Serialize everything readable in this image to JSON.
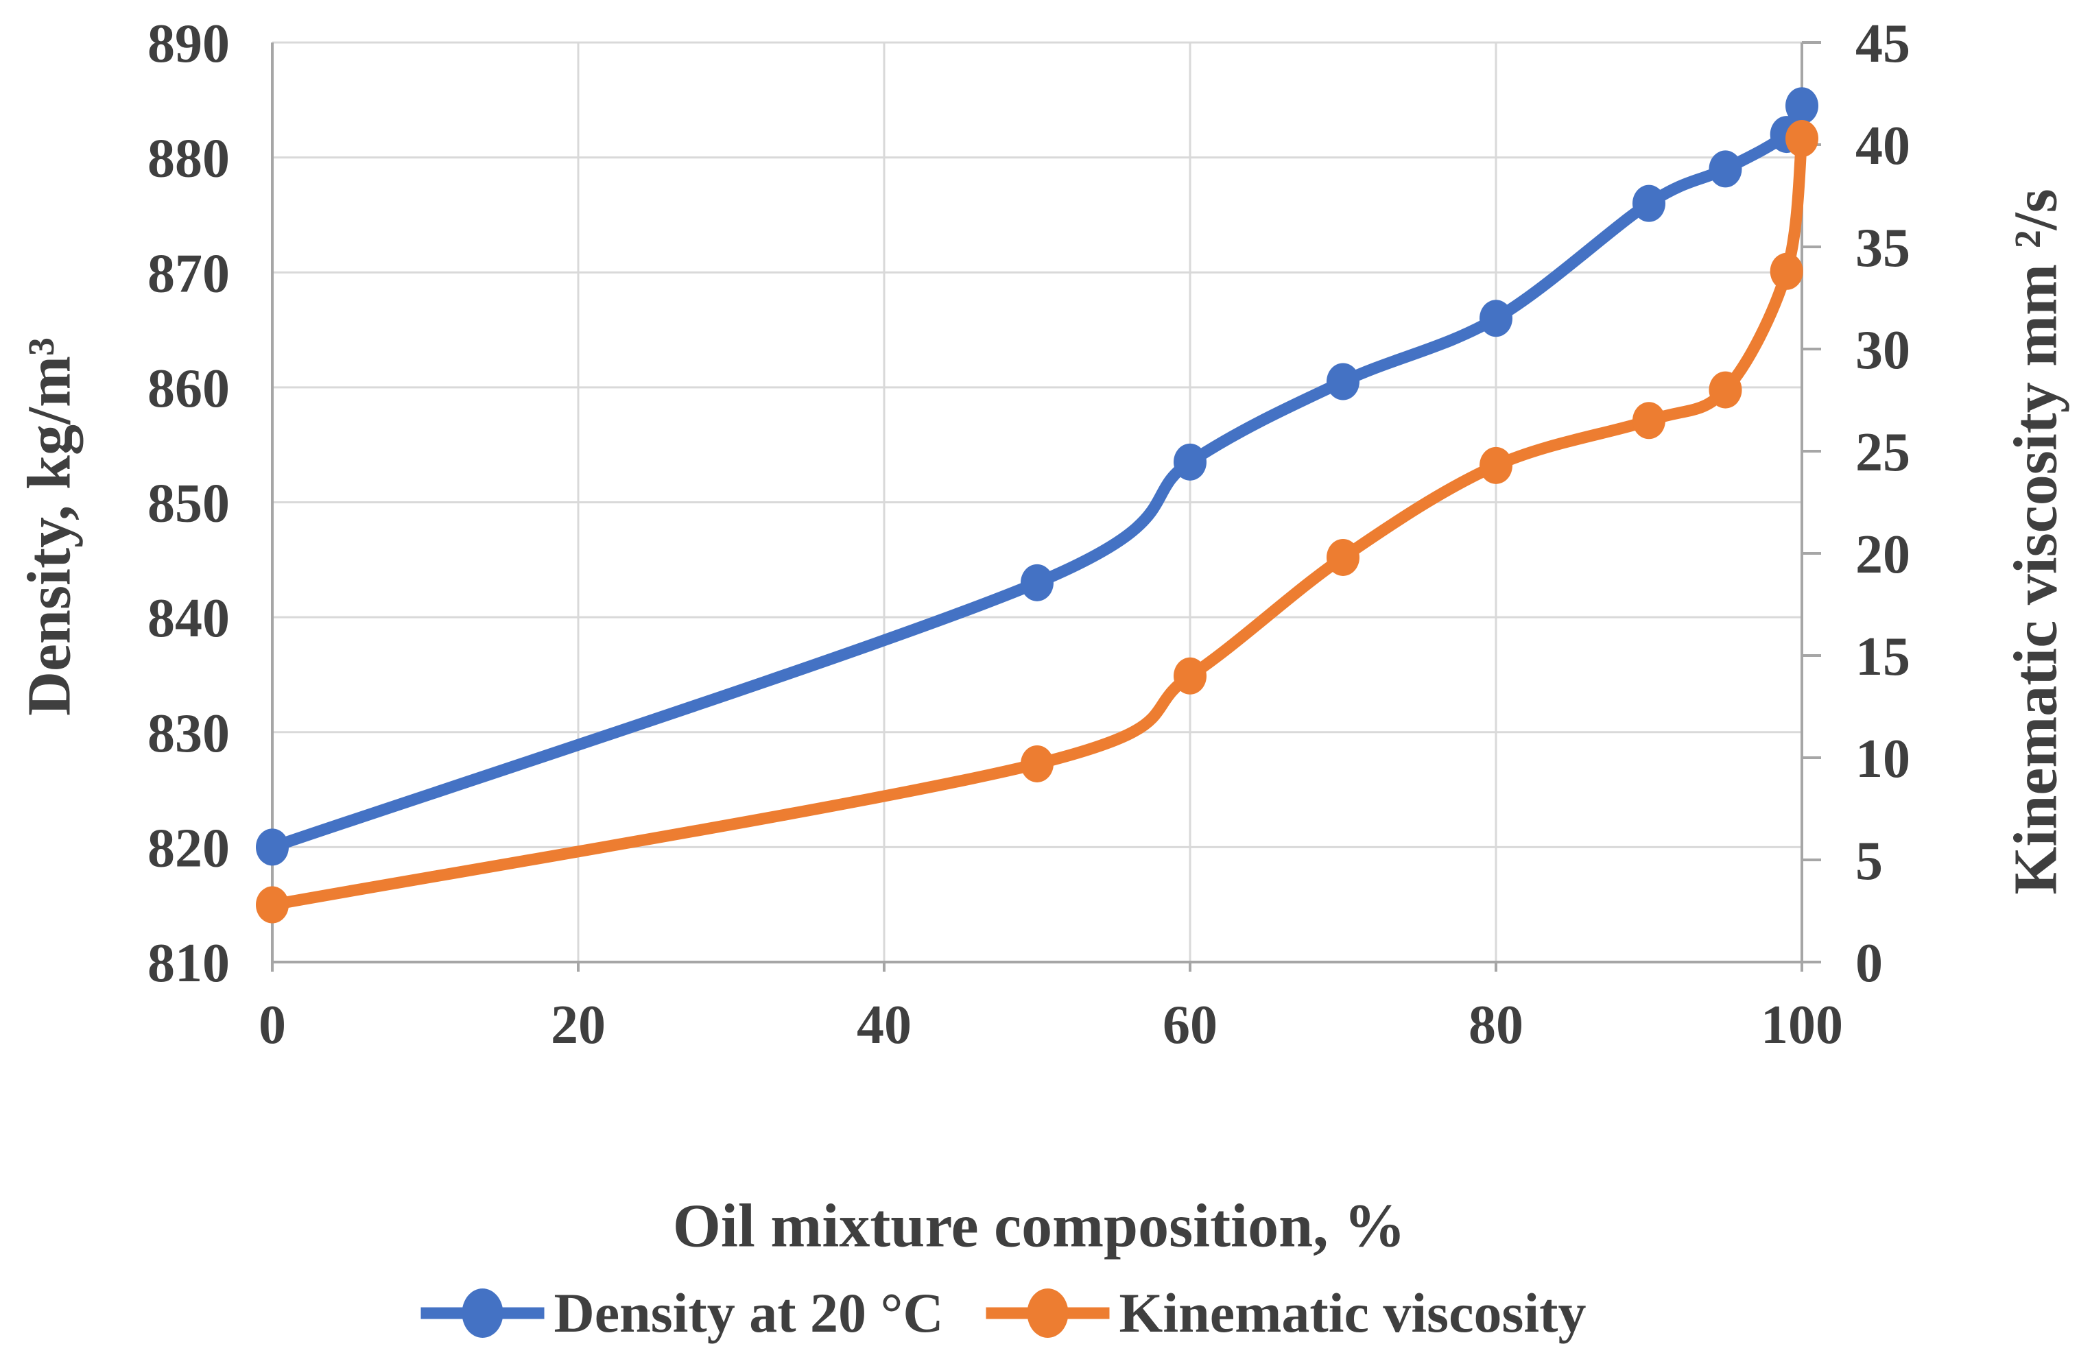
{
  "chart_data": {
    "type": "line",
    "smoothed": true,
    "grid": true,
    "legend_position": "bottom",
    "x_axis": {
      "label": "Oil mixture composition, %",
      "min": 0,
      "max": 100,
      "ticks": [
        0,
        20,
        40,
        60,
        80,
        100
      ]
    },
    "left_axis": {
      "label": "Density, kg/m³",
      "min": 810,
      "max": 890,
      "ticks": [
        810,
        820,
        830,
        840,
        850,
        860,
        870,
        880,
        890
      ]
    },
    "right_axis": {
      "label": "Kinematic viscosity mm ²/s",
      "min": 0,
      "max": 45,
      "ticks": [
        0,
        5,
        10,
        15,
        20,
        25,
        30,
        35,
        40,
        45
      ]
    },
    "x": [
      0,
      50,
      60,
      70,
      80,
      90,
      95,
      99,
      100
    ],
    "series": [
      {
        "name": "Density at 20 °C",
        "axis": "left",
        "color": "#4472C4",
        "marker": "circle",
        "values": [
          820,
          843,
          853.5,
          860.5,
          866,
          876,
          879,
          882,
          884.5
        ]
      },
      {
        "name": "Kinematic viscosity",
        "axis": "right",
        "color": "#ED7D31",
        "marker": "circle",
        "values": [
          2.8,
          9.7,
          14,
          19.8,
          24.3,
          26.5,
          28,
          33.8,
          40.3
        ]
      }
    ]
  },
  "styles": {
    "background": "#FFFFFF",
    "grid_color": "#D9D9D9",
    "axis_color": "#A6A6A6",
    "text_color": "#3F3F3F"
  }
}
